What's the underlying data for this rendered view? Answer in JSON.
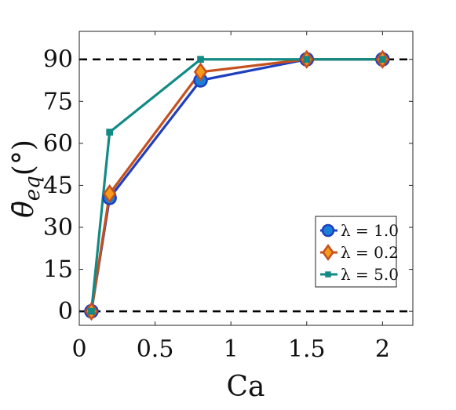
{
  "chart_data": {
    "type": "line",
    "title": "",
    "xlabel": "Ca",
    "ylabel": "θ̄eq(°)",
    "ylabel_base": "θ̄",
    "ylabel_sub": "eq",
    "ylabel_unit": "(°)",
    "xlim": [
      0,
      2.2
    ],
    "ylim": [
      -5,
      100
    ],
    "x_ticks": [
      0,
      0.5,
      1,
      1.5,
      2
    ],
    "x_tick_labels": [
      "0",
      "0.5",
      "1",
      "1.5",
      "2"
    ],
    "y_ticks": [
      0,
      15,
      30,
      45,
      60,
      75,
      90
    ],
    "y_tick_labels": [
      "0",
      "15",
      "30",
      "45",
      "60",
      "75",
      "90"
    ],
    "reference_lines": [
      0,
      90
    ],
    "grid": false,
    "legend_position": "lower-right",
    "series": [
      {
        "name": "λ = 1.0",
        "marker": "circle",
        "color": "#1f3fbf",
        "marker_fill": "#1a7fd6",
        "x": [
          0.08,
          0.2,
          0.8,
          1.5,
          2.0
        ],
        "y": [
          0,
          40.5,
          82.5,
          90,
          90
        ]
      },
      {
        "name": "λ = 0.2",
        "marker": "diamond",
        "color": "#c4501e",
        "marker_fill": "#f59a1b",
        "x": [
          0.08,
          0.2,
          0.8,
          1.5,
          2.0
        ],
        "y": [
          0,
          42,
          85.5,
          90,
          90
        ]
      },
      {
        "name": "λ = 5.0",
        "marker": "square",
        "color": "#128a85",
        "marker_fill": "#128a85",
        "x": [
          0.08,
          0.2,
          0.8,
          1.5,
          2.0
        ],
        "y": [
          0,
          64,
          90,
          90,
          90
        ]
      }
    ]
  }
}
